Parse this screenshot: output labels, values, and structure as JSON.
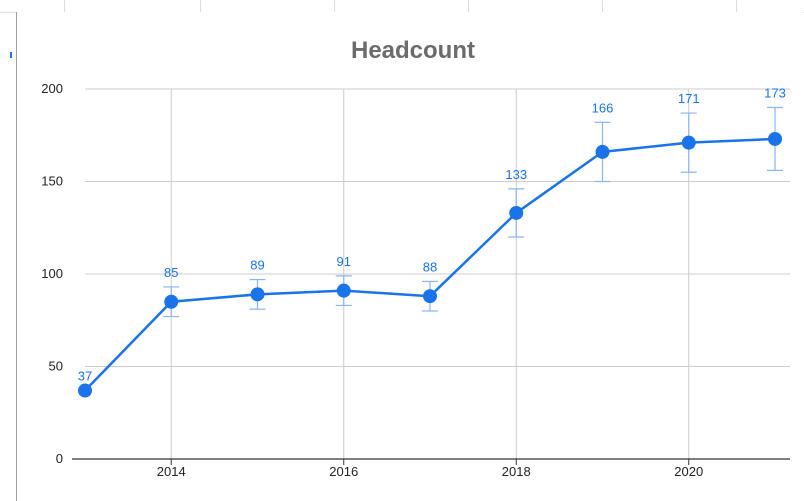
{
  "chart_data": {
    "type": "line",
    "title": "Headcount",
    "xlabel": "",
    "ylabel": "",
    "x": [
      2013,
      2014,
      2015,
      2016,
      2017,
      2018,
      2019,
      2020,
      2021
    ],
    "series": [
      {
        "values": [
          37,
          85,
          89,
          91,
          88,
          133,
          166,
          171,
          173
        ],
        "error_low": [
          37,
          77,
          81,
          83,
          80,
          120,
          150,
          155,
          156
        ],
        "error_high": [
          37,
          93,
          97,
          99,
          96,
          146,
          182,
          187,
          190
        ],
        "color": "#1a73e8"
      }
    ],
    "ylim": [
      0,
      200
    ],
    "xlim": [
      2013,
      2021
    ],
    "yticks": [
      "0",
      "50",
      "100",
      "150",
      "200"
    ],
    "xticks": [
      "2014",
      "2016",
      "2018",
      "2020"
    ],
    "xtick_values": [
      2014,
      2016,
      2018,
      2020
    ],
    "ytick_values": [
      0,
      50,
      100,
      150,
      200
    ],
    "grid": true,
    "legend": "none",
    "data_labels": [
      "37",
      "85",
      "89",
      "91",
      "88",
      "133",
      "166",
      "171",
      "173"
    ],
    "gridline_color": "#cccccc"
  }
}
